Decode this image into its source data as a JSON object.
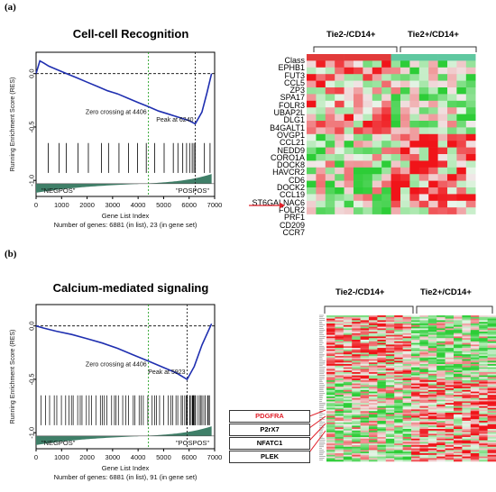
{
  "panels": [
    {
      "label": "(a)",
      "title": "Cell-cell Recognition",
      "ylabel": "Running Enrichment Score (RES)",
      "xlabel": "Gene List Index",
      "footer": "Number of genes: 6881 (in list), 23 (in gene set)",
      "zero_crossing": "Zero crossing at 4406",
      "peak": "Peak at 6240",
      "left_tag": "\"NEGPOS\"",
      "right_tag": "\"POSPOS\"",
      "group_left": "Tie2-/CD14+",
      "group_right": "Tie2+/CD14+",
      "genes": [
        "Class",
        "EPHB1",
        "FUT3",
        "CCL5",
        "ZP3",
        "SPA17",
        "FOLR3",
        "UBAP2L",
        "DLG1",
        "B4GALT1",
        "OVGP1",
        "CCL21",
        "NEDD9",
        "CORO1A",
        "DOCK8",
        "HAVCR2",
        "CD6",
        "DOCK2",
        "CCL19",
        "ST6GALNAC6",
        "FOLR2",
        "PRF1",
        "CD209",
        "CCR7"
      ]
    },
    {
      "label": "(b)",
      "title": "Calcium-mediated signaling",
      "ylabel": "Running Enrichment Score (RES)",
      "xlabel": "Gene List Index",
      "footer": "Number of genes: 6881 (in list), 91 (in gene set)",
      "zero_crossing": "Zero crossing at 4406",
      "peak": "Peak at 5923",
      "left_tag": "\"NEGPOS\"",
      "right_tag": "\"POSPOS\"",
      "group_left": "Tie2-/CD14+",
      "group_right": "Tie2+/CD14+",
      "callouts": [
        "PDGFRA",
        "P2rX7",
        "NFATC1",
        "PLEK"
      ],
      "callout_colors": [
        "#e0202a",
        "#000000",
        "#000000",
        "#000000"
      ]
    }
  ],
  "chart_data": [
    {
      "type": "line",
      "title": "Cell-cell Recognition",
      "xlabel": "Gene List Index",
      "ylabel": "Running Enrichment Score (RES)",
      "xlim": [
        0,
        7000
      ],
      "ylim": [
        -1.15,
        0.2
      ],
      "x_ticks": [
        0,
        1000,
        2000,
        3000,
        4000,
        5000,
        6000,
        7000
      ],
      "y_ticks": [
        0.0,
        -0.5,
        -1.0
      ],
      "x": [
        0,
        150,
        300,
        500,
        800,
        1200,
        1600,
        2000,
        2400,
        2800,
        3200,
        3600,
        4000,
        4406,
        4800,
        5200,
        5600,
        6000,
        6240,
        6500,
        6700,
        6881
      ],
      "y": [
        0.0,
        0.12,
        0.1,
        0.07,
        0.04,
        0.0,
        -0.04,
        -0.08,
        -0.12,
        -0.16,
        -0.19,
        -0.23,
        -0.27,
        -0.31,
        -0.35,
        -0.38,
        -0.41,
        -0.44,
        -0.47,
        -0.36,
        -0.18,
        0.0
      ],
      "hits": [
        480,
        900,
        1180,
        1640,
        2050,
        2560,
        2840,
        3250,
        3620,
        3980,
        4320,
        4650,
        5020,
        5380,
        5560,
        5750,
        5900,
        6020,
        6120,
        6190,
        6240,
        6600,
        6820
      ],
      "vlines": [
        4406,
        6240
      ],
      "line_color": "#1f2fb0"
    },
    {
      "type": "line",
      "title": "Calcium-mediated signaling",
      "xlabel": "Gene List Index",
      "ylabel": "Running Enrichment Score (RES)",
      "xlim": [
        0,
        7000
      ],
      "ylim": [
        -1.15,
        0.2
      ],
      "x_ticks": [
        0,
        1000,
        2000,
        3000,
        4000,
        5000,
        6000,
        7000
      ],
      "y_ticks": [
        0.0,
        -0.5,
        -1.0
      ],
      "x": [
        0,
        300,
        800,
        1400,
        2000,
        2600,
        3200,
        3800,
        4406,
        5000,
        5500,
        5923,
        6200,
        6500,
        6881
      ],
      "y": [
        0.0,
        -0.02,
        -0.05,
        -0.08,
        -0.12,
        -0.16,
        -0.21,
        -0.27,
        -0.33,
        -0.39,
        -0.44,
        -0.5,
        -0.38,
        -0.18,
        0.02
      ],
      "hits_density": "dense",
      "vlines": [
        4406,
        5923
      ],
      "line_color": "#1f2fb0"
    }
  ]
}
